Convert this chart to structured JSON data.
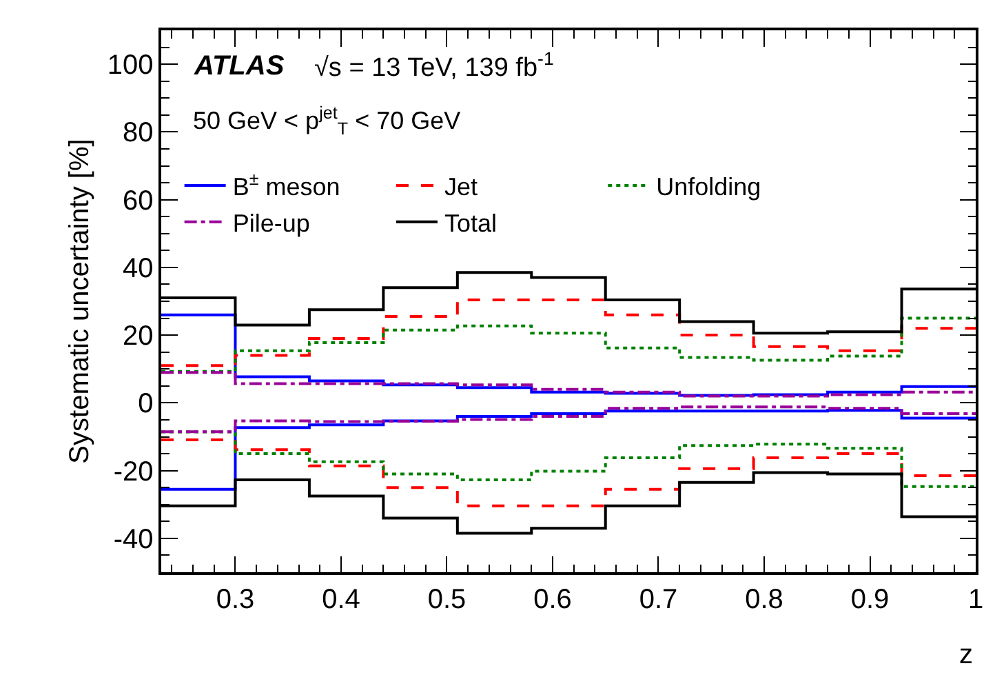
{
  "chart_data": {
    "type": "histogram",
    "xlabel": "z",
    "ylabel": "Systematic uncertainty [%]",
    "annotations": [
      "ATLAS",
      "√s = 13 TeV, 139 fb$^{-1}$",
      "50 GeV < p$^{jet}$$_{T}$ < 70 GeV"
    ],
    "bins": [
      0.23,
      0.3,
      0.37,
      0.44,
      0.51,
      0.58,
      0.65,
      0.72,
      0.79,
      0.86,
      0.93,
      1.0
    ],
    "series": [
      {
        "name": "B$^{±}$ meson",
        "color": "#0000ff",
        "line_style": "solid",
        "values": [
          26,
          7.7,
          6.5,
          5.3,
          4.5,
          3.2,
          2.8,
          2.2,
          2.4,
          3.2,
          4.8
        ]
      },
      {
        "name": "Jet",
        "color": "#ff0000",
        "line_style": "dashed",
        "values": [
          11,
          14,
          19,
          25.5,
          30.4,
          30.4,
          26,
          20,
          16.6,
          15.4,
          22
        ]
      },
      {
        "name": "Unfolding",
        "color": "#008000",
        "line_style": "dotted",
        "values": [
          9.3,
          15.4,
          17.8,
          21.5,
          22.7,
          20.6,
          16.2,
          13.4,
          12.6,
          13.8,
          25
        ]
      },
      {
        "name": "Pile-up",
        "color": "#990099",
        "line_style": "dashdot",
        "values": [
          9,
          5.7,
          5.7,
          5.7,
          5.3,
          4,
          3.2,
          2,
          2,
          2.4,
          3.2
        ]
      },
      {
        "name": "Total",
        "color": "#000000",
        "line_style": "solid",
        "values": [
          31,
          23,
          27.5,
          34,
          38.5,
          37,
          30.4,
          24,
          20.6,
          21,
          33.6
        ]
      },
      {
        "color": "#0000ff",
        "line_style": "solid",
        "values": [
          -25.5,
          -7.3,
          -6.5,
          -5.3,
          -4,
          -3.2,
          -2.4,
          -2.4,
          -2.4,
          -2.2,
          -4.5
        ]
      },
      {
        "color": "#ff0000",
        "line_style": "dashed",
        "values": [
          -10.9,
          -13.8,
          -18.6,
          -25,
          -30.4,
          -30.4,
          -25.5,
          -19.4,
          -16.2,
          -15,
          -21.5
        ]
      },
      {
        "color": "#008000",
        "line_style": "dotted",
        "values": [
          -8.6,
          -15,
          -17.4,
          -21,
          -22.7,
          -20.2,
          -16.2,
          -12.6,
          -12.2,
          -13.4,
          -24.7
        ]
      },
      {
        "color": "#990099",
        "line_style": "dashdot",
        "values": [
          -8.5,
          -5.3,
          -5.5,
          -5.4,
          -4.9,
          -4,
          -1.6,
          -1.2,
          -1.2,
          -1.6,
          -3.2
        ]
      },
      {
        "color": "#000000",
        "line_style": "solid",
        "values": [
          -30.4,
          -22.7,
          -27.5,
          -34,
          -38.5,
          -37,
          -30.4,
          -23.5,
          -20.6,
          -21,
          -33.6
        ]
      }
    ],
    "xlim": [
      0.23,
      1.0
    ],
    "ylim": [
      -50,
      110
    ],
    "xticks": [
      0.3,
      0.4,
      0.5,
      0.6,
      0.7,
      0.8,
      0.9,
      1
    ],
    "yticks": [
      -40,
      -20,
      0,
      20,
      40,
      60,
      80,
      100
    ],
    "legend": "top left"
  }
}
